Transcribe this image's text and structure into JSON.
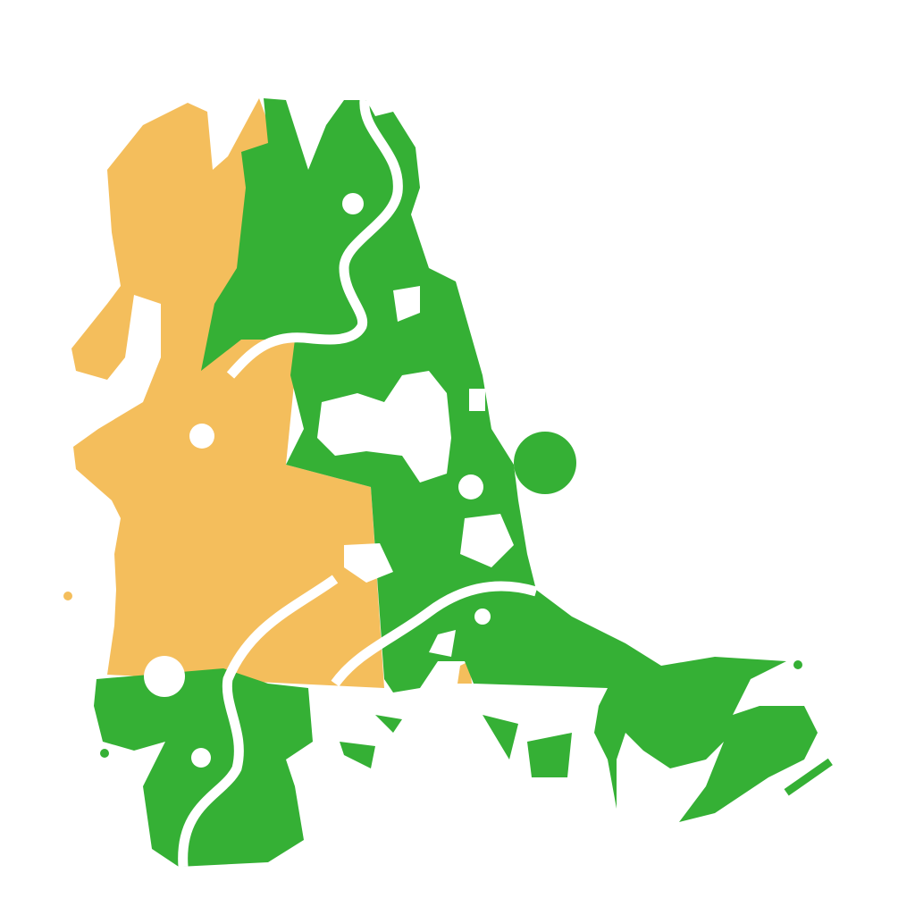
{
  "map": {
    "colors": {
      "background": "#ffffff",
      "sand": "#f4be5c",
      "forest": "#35b035",
      "water": "#ffffff"
    },
    "terrain_types": [
      "sand",
      "forest",
      "water"
    ]
  }
}
